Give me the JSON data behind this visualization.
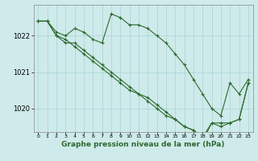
{
  "series": [
    {
      "x": [
        0,
        1,
        2,
        3,
        4,
        5,
        6,
        7,
        8,
        9,
        10,
        11,
        12,
        13,
        14,
        15,
        16,
        17,
        18,
        19,
        20,
        21,
        22,
        23
      ],
      "y": [
        1022.4,
        1022.4,
        1022.1,
        1022.0,
        1022.2,
        1022.1,
        1021.9,
        1021.8,
        1022.6,
        1022.5,
        1022.3,
        1022.3,
        1022.2,
        1022.0,
        1021.8,
        1021.5,
        1021.2,
        1020.8,
        1020.4,
        1020.0,
        1019.8,
        1020.7,
        1020.4,
        1020.8
      ]
    },
    {
      "x": [
        0,
        1,
        2,
        3,
        4,
        5,
        6,
        7,
        8,
        9,
        10,
        11,
        12,
        13,
        14,
        15,
        16,
        17,
        18,
        19,
        20,
        21,
        22,
        23
      ],
      "y": [
        1022.4,
        1022.4,
        1022.0,
        1021.8,
        1021.8,
        1021.6,
        1021.4,
        1021.2,
        1021.0,
        1020.8,
        1020.6,
        1020.4,
        1020.3,
        1020.1,
        1019.9,
        1019.7,
        1019.5,
        1019.4,
        1019.2,
        1019.6,
        1019.6,
        1019.6,
        1019.7,
        1020.7
      ]
    },
    {
      "x": [
        0,
        1,
        2,
        3,
        4,
        5,
        6,
        7,
        8,
        9,
        10,
        11,
        12,
        13,
        14,
        15,
        16,
        17,
        18,
        19,
        20,
        21,
        22,
        23
      ],
      "y": [
        1022.4,
        1022.4,
        1022.0,
        1021.9,
        1021.7,
        1021.5,
        1021.3,
        1021.1,
        1020.9,
        1020.7,
        1020.5,
        1020.4,
        1020.2,
        1020.0,
        1019.8,
        1019.7,
        1019.5,
        1019.4,
        1019.1,
        1019.6,
        1019.5,
        1019.6,
        1019.7,
        1020.7
      ]
    }
  ],
  "line_color": "#2d6a2d",
  "marker": "+",
  "markersize": 3,
  "linewidth": 0.8,
  "markeredgewidth": 0.8,
  "xlim": [
    -0.5,
    23.5
  ],
  "ylim": [
    1019.35,
    1022.85
  ],
  "yticks": [
    1020,
    1021,
    1022
  ],
  "xticks": [
    0,
    1,
    2,
    3,
    4,
    5,
    6,
    7,
    8,
    9,
    10,
    11,
    12,
    13,
    14,
    15,
    16,
    17,
    18,
    19,
    20,
    21,
    22,
    23
  ],
  "xlabel": "Graphe pression niveau de la mer (hPa)",
  "xlabel_fontsize": 6.5,
  "xlabel_bold": true,
  "ytick_fontsize": 6,
  "xtick_fontsize": 4.5,
  "background_color": "#ceeaea",
  "grid_color": "#9ecece",
  "grid_linewidth": 0.4,
  "figsize": [
    3.2,
    2.0
  ],
  "dpi": 100
}
